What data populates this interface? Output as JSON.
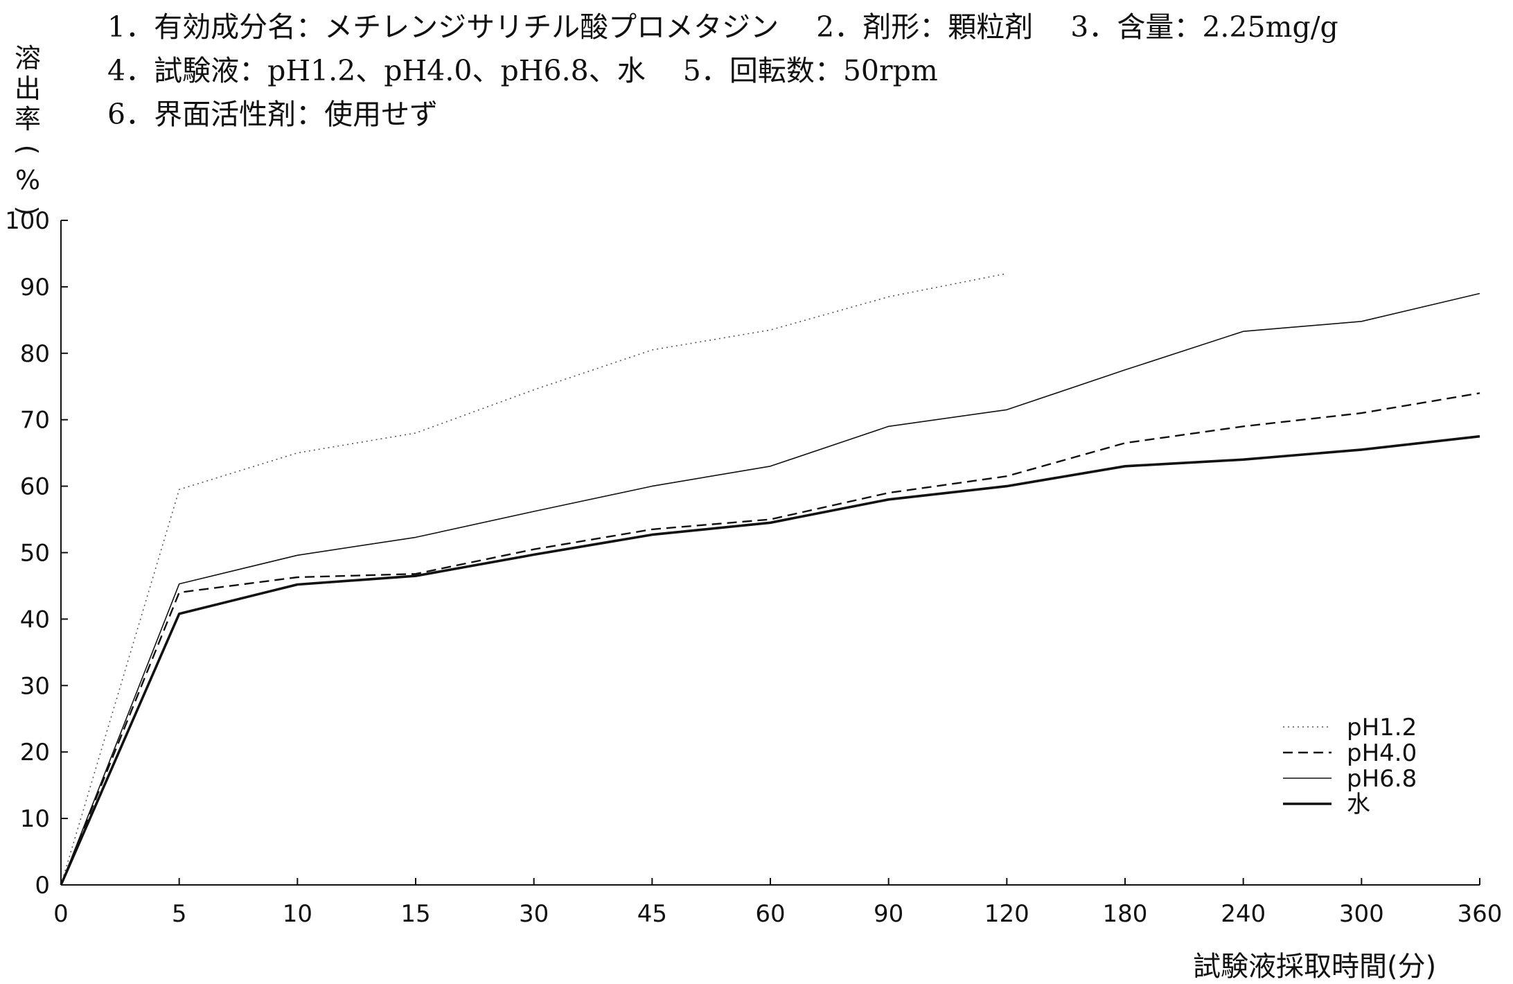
{
  "header": {
    "line1": "1．有効成分名：メチレンジサリチル酸プロメタジン　 2．剤形：顆粒剤　 3．含量：2.25mg/g",
    "line2": "4．試験液：pH1.2、pH4.0、pH6.8、水　 5．回転数：50rpm",
    "line3": "6．界面活性剤：使用せず"
  },
  "chart_data": {
    "type": "line",
    "title": "",
    "ylabel": "溶出率(%)",
    "ylabel_chars": [
      "溶",
      "出",
      "率",
      "(",
      "%",
      ")"
    ],
    "xlabel": "試験液採取時間(分)",
    "categories": [
      "0",
      "5",
      "10",
      "15",
      "30",
      "45",
      "60",
      "90",
      "120",
      "180",
      "240",
      "300",
      "360"
    ],
    "yticks": [
      0,
      10,
      20,
      30,
      40,
      50,
      60,
      70,
      80,
      90,
      100
    ],
    "ylim": [
      0,
      100
    ],
    "grid": false,
    "legend_position": "bottom-right",
    "series": [
      {
        "name": "pH1.2",
        "style": "dotted",
        "stroke_color": "#555555",
        "values": [
          0,
          59.5,
          65,
          68,
          74.5,
          80.5,
          83.5,
          88.5,
          92,
          null,
          null,
          null,
          null
        ]
      },
      {
        "name": "pH4.0",
        "style": "dashed",
        "stroke_color": "#111111",
        "values": [
          0,
          44,
          46.3,
          46.8,
          50.5,
          53.5,
          55,
          59,
          61.5,
          66.5,
          69,
          71,
          74
        ]
      },
      {
        "name": "pH6.8",
        "style": "thin",
        "stroke_color": "#111111",
        "values": [
          0,
          45.3,
          49.6,
          52.3,
          56.2,
          60,
          63,
          69,
          71.5,
          77.5,
          83.3,
          84.8,
          89
        ]
      },
      {
        "name": "水",
        "style": "thick",
        "stroke_color": "#111111",
        "values": [
          0,
          40.8,
          45.2,
          46.5,
          49.7,
          52.7,
          54.5,
          58,
          60,
          63,
          64,
          65.5,
          67.5
        ]
      }
    ]
  }
}
